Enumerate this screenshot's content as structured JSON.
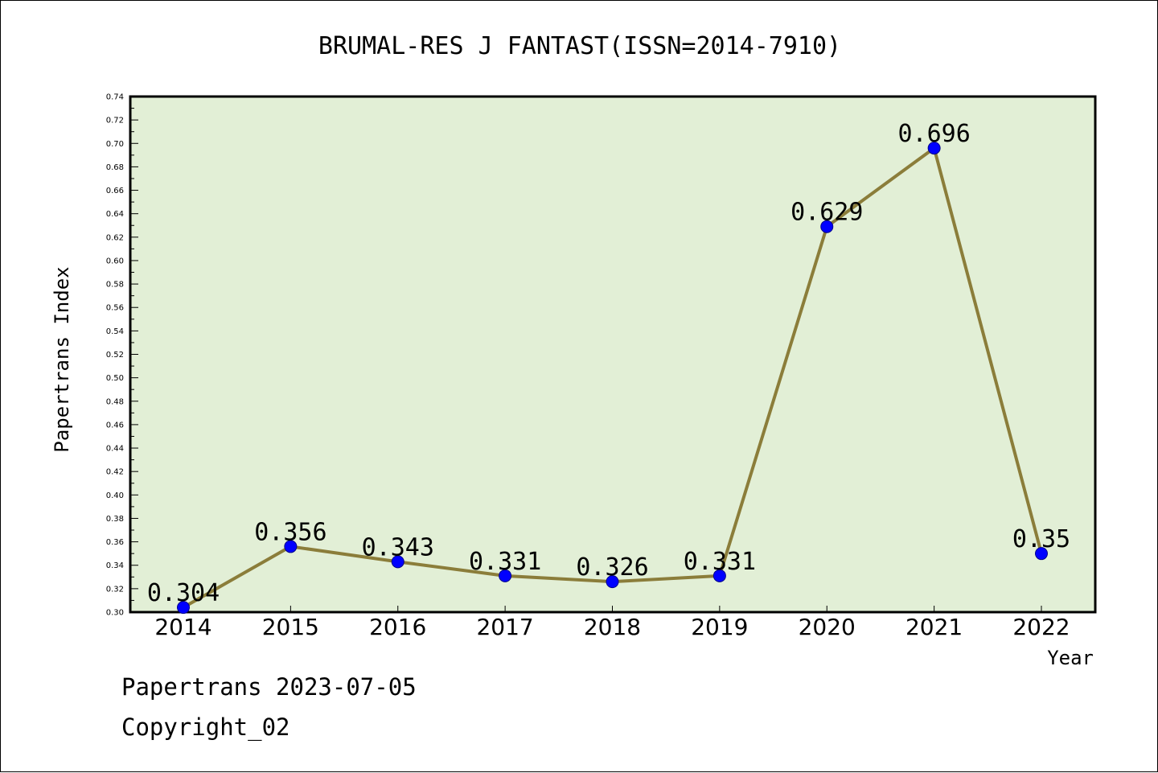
{
  "chart_data": {
    "type": "line",
    "title": "BRUMAL-RES J FANTAST(ISSN=2014-7910)",
    "xlabel": "Year",
    "ylabel": "Papertrans Index",
    "categories": [
      "2014",
      "2015",
      "2016",
      "2017",
      "2018",
      "2019",
      "2020",
      "2021",
      "2022"
    ],
    "series": [
      {
        "values": [
          0.304,
          0.356,
          0.343,
          0.331,
          0.326,
          0.331,
          0.629,
          0.696,
          0.35
        ],
        "labels": [
          "0.304",
          "0.356",
          "0.343",
          "0.331",
          "0.326",
          "0.331",
          "0.629",
          "0.696",
          "0.35"
        ]
      }
    ],
    "ylim": [
      0.3,
      0.74
    ],
    "yticks": [
      "0.30",
      "0.32",
      "0.34",
      "0.36",
      "0.38",
      "0.40",
      "0.42",
      "0.44",
      "0.46",
      "0.48",
      "0.50",
      "0.52",
      "0.54",
      "0.56",
      "0.58",
      "0.60",
      "0.62",
      "0.64",
      "0.66",
      "0.68",
      "0.70",
      "0.72",
      "0.74"
    ],
    "grid": false,
    "colors": {
      "line": "#8B7D3A",
      "marker": "#0000FF",
      "plot_background": "#E2EFD6"
    }
  },
  "footer": {
    "date": "Papertrans 2023-07-05",
    "copyright": "Copyright_02"
  }
}
